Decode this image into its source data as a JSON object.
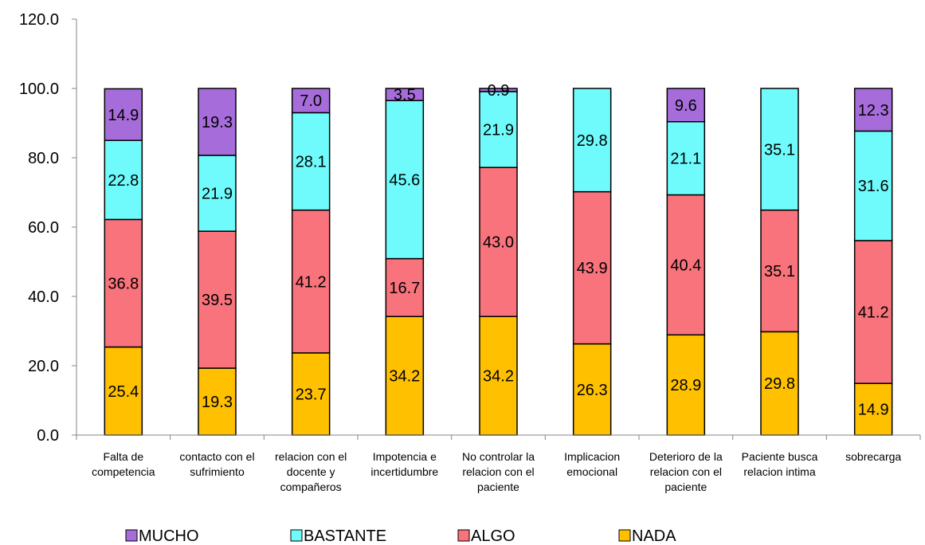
{
  "chart_data": {
    "type": "bar",
    "stacked": true,
    "categories": [
      [
        "Falta de",
        "competencia"
      ],
      [
        "contacto con el",
        "sufrimiento"
      ],
      [
        "relacion con el",
        "docente y",
        "compañeros"
      ],
      [
        "Impotencia e",
        "incertidumbre"
      ],
      [
        "No controlar la",
        "relacion con el",
        "paciente"
      ],
      [
        "Implicacion",
        "emocional"
      ],
      [
        "Deterioro de la",
        "relacion con el",
        "paciente"
      ],
      [
        "Paciente busca",
        "relacion intima"
      ],
      [
        "sobrecarga"
      ]
    ],
    "series": [
      {
        "name": "NADA",
        "color": "#FFC000",
        "values": [
          25.4,
          19.3,
          23.7,
          34.2,
          34.2,
          26.3,
          28.9,
          29.8,
          14.9
        ]
      },
      {
        "name": "ALGO",
        "color": "#F8737B",
        "values": [
          36.8,
          39.5,
          41.2,
          16.7,
          43.0,
          43.9,
          40.4,
          35.1,
          41.2
        ]
      },
      {
        "name": "BASTANTE",
        "color": "#6FFBFB",
        "values": [
          22.8,
          21.9,
          28.1,
          45.6,
          21.9,
          29.8,
          21.1,
          35.1,
          31.6
        ]
      },
      {
        "name": "MUCHO",
        "color": "#A66DDA",
        "values": [
          14.9,
          19.3,
          7.0,
          3.5,
          0.9,
          null,
          9.6,
          null,
          12.3
        ]
      }
    ],
    "legend_order": [
      "MUCHO",
      "BASTANTE",
      "ALGO",
      "NADA"
    ],
    "legend_position": "bottom",
    "ylim": [
      0,
      120
    ],
    "yticks": [
      "0.0",
      "20.0",
      "40.0",
      "60.0",
      "80.0",
      "100.0",
      "120.0"
    ],
    "title": "",
    "xlabel": "",
    "ylabel": "",
    "grid": false
  }
}
